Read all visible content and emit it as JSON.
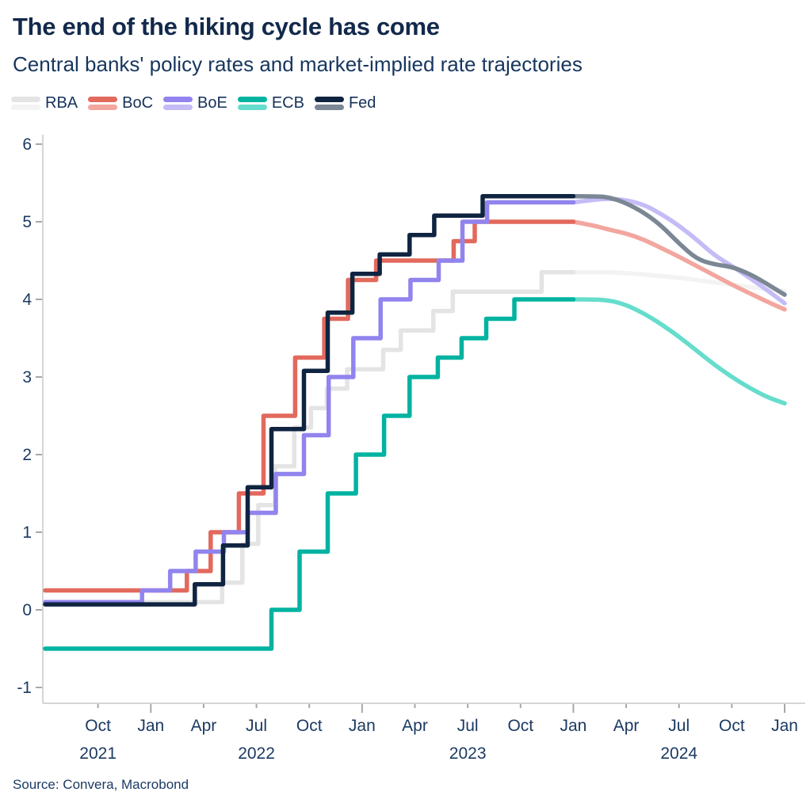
{
  "header": {
    "title": "The end of the hiking cycle has come",
    "subtitle": "Central banks' policy rates and market-implied rate trajectories"
  },
  "source_note": "Source: Convera, Macrobond",
  "text_colors": {
    "title": "#12294a",
    "subtitle": "#17365f",
    "axis_labels": "#1c3a63",
    "legend_labels": "#15325a"
  },
  "axis_colors": {
    "axis_line": "#c9c9c9",
    "tick": "#a8a8a8"
  },
  "chart_data": {
    "type": "line",
    "title": "The end of the hiking cycle has come",
    "subtitle": "Central banks' policy rates and market-implied rate trajectories",
    "unit": "percent",
    "grid": false,
    "legend_position": "top-left",
    "x_axis": {
      "note": "month index 0 = Jul 2021, 42 = Jan 2025; policy steps are [month_index, rate]",
      "start_label": "Jul 2021",
      "end_label": "Jan 2025",
      "month_ticks": [
        {
          "m": 3,
          "label": "Oct"
        },
        {
          "m": 6,
          "label": "Jan"
        },
        {
          "m": 9,
          "label": "Apr"
        },
        {
          "m": 12,
          "label": "Jul"
        },
        {
          "m": 15,
          "label": "Oct"
        },
        {
          "m": 18,
          "label": "Jan"
        },
        {
          "m": 21,
          "label": "Apr"
        },
        {
          "m": 24,
          "label": "Jul"
        },
        {
          "m": 27,
          "label": "Oct"
        },
        {
          "m": 30,
          "label": "Jan"
        },
        {
          "m": 33,
          "label": "Apr"
        },
        {
          "m": 36,
          "label": "Jul"
        },
        {
          "m": 39,
          "label": "Oct"
        },
        {
          "m": 42,
          "label": "Jan"
        }
      ],
      "year_labels": [
        {
          "m": 3,
          "label": "2021"
        },
        {
          "m": 12,
          "label": "2022"
        },
        {
          "m": 24,
          "label": "2023"
        },
        {
          "m": 36,
          "label": "2024"
        }
      ]
    },
    "y_axis": {
      "min": -1,
      "max": 6,
      "ticks": [
        -1,
        0,
        1,
        2,
        3,
        4,
        5,
        6
      ]
    },
    "implied_start_month": 30,
    "implied_end_month": 42,
    "series": [
      {
        "name": "RBA",
        "policy_color": "#e4e4e4",
        "implied_color": "#f3f3f3",
        "policy_steps": [
          [
            0,
            0.1
          ],
          [
            10.05,
            0.35
          ],
          [
            11.2,
            0.85
          ],
          [
            12.1,
            1.35
          ],
          [
            13.05,
            1.85
          ],
          [
            14.15,
            2.35
          ],
          [
            15.1,
            2.6
          ],
          [
            16.0,
            2.85
          ],
          [
            17.15,
            3.1
          ],
          [
            19.2,
            3.35
          ],
          [
            20.2,
            3.6
          ],
          [
            22.05,
            3.85
          ],
          [
            23.15,
            4.1
          ],
          [
            28.2,
            4.35
          ]
        ],
        "implied_monthly": [
          4.35,
          4.35,
          4.35,
          4.34,
          4.32,
          4.3,
          4.28,
          4.25,
          4.22,
          4.19,
          4.16,
          4.13,
          4.11
        ]
      },
      {
        "name": "BoC",
        "policy_color": "#e2695c",
        "implied_color": "#f2a69e",
        "policy_steps": [
          [
            0,
            0.25
          ],
          [
            8.05,
            0.5
          ],
          [
            9.4,
            1.0
          ],
          [
            11.0,
            1.5
          ],
          [
            12.4,
            2.5
          ],
          [
            14.2,
            3.25
          ],
          [
            15.85,
            3.75
          ],
          [
            17.2,
            4.25
          ],
          [
            18.8,
            4.5
          ],
          [
            23.2,
            4.75
          ],
          [
            24.4,
            5.0
          ]
        ],
        "implied_monthly": [
          5.0,
          4.96,
          4.9,
          4.85,
          4.77,
          4.66,
          4.55,
          4.43,
          4.31,
          4.19,
          4.08,
          3.97,
          3.87
        ]
      },
      {
        "name": "BoE",
        "policy_color": "#9184ee",
        "implied_color": "#c4bcf6",
        "policy_steps": [
          [
            0,
            0.1
          ],
          [
            5.5,
            0.25
          ],
          [
            7.1,
            0.5
          ],
          [
            8.55,
            0.75
          ],
          [
            10.15,
            1.0
          ],
          [
            11.5,
            1.25
          ],
          [
            13.1,
            1.75
          ],
          [
            14.7,
            2.25
          ],
          [
            16.1,
            3.0
          ],
          [
            17.5,
            3.5
          ],
          [
            19.05,
            4.0
          ],
          [
            20.75,
            4.25
          ],
          [
            22.35,
            4.5
          ],
          [
            23.7,
            5.0
          ],
          [
            25.1,
            5.25
          ]
        ],
        "implied_monthly": [
          5.25,
          5.28,
          5.3,
          5.28,
          5.22,
          5.1,
          4.95,
          4.77,
          4.57,
          4.43,
          4.28,
          4.12,
          3.95
        ]
      },
      {
        "name": "ECB",
        "policy_color": "#00b3a1",
        "implied_color": "#66ddcc",
        "policy_steps": [
          [
            0,
            -0.5
          ],
          [
            12.85,
            0.0
          ],
          [
            14.45,
            0.75
          ],
          [
            16.05,
            1.5
          ],
          [
            17.65,
            2.0
          ],
          [
            19.25,
            2.5
          ],
          [
            20.7,
            3.0
          ],
          [
            22.3,
            3.25
          ],
          [
            23.65,
            3.5
          ],
          [
            25.05,
            3.75
          ],
          [
            26.65,
            4.0
          ]
        ],
        "implied_monthly": [
          4.0,
          4.0,
          3.99,
          3.93,
          3.82,
          3.68,
          3.52,
          3.34,
          3.16,
          3.0,
          2.86,
          2.74,
          2.66
        ]
      },
      {
        "name": "Fed",
        "policy_color": "#0f2440",
        "implied_color": "#7b8794",
        "policy_steps": [
          [
            0,
            0.07
          ],
          [
            8.5,
            0.33
          ],
          [
            10.1,
            0.83
          ],
          [
            11.5,
            1.58
          ],
          [
            12.85,
            2.33
          ],
          [
            14.7,
            3.08
          ],
          [
            16.05,
            3.83
          ],
          [
            17.45,
            4.33
          ],
          [
            19.0,
            4.58
          ],
          [
            20.7,
            4.83
          ],
          [
            22.1,
            5.08
          ],
          [
            24.85,
            5.33
          ]
        ],
        "implied_monthly": [
          5.33,
          5.33,
          5.32,
          5.24,
          5.12,
          4.95,
          4.72,
          4.52,
          4.45,
          4.42,
          4.33,
          4.2,
          4.06
        ]
      }
    ]
  }
}
